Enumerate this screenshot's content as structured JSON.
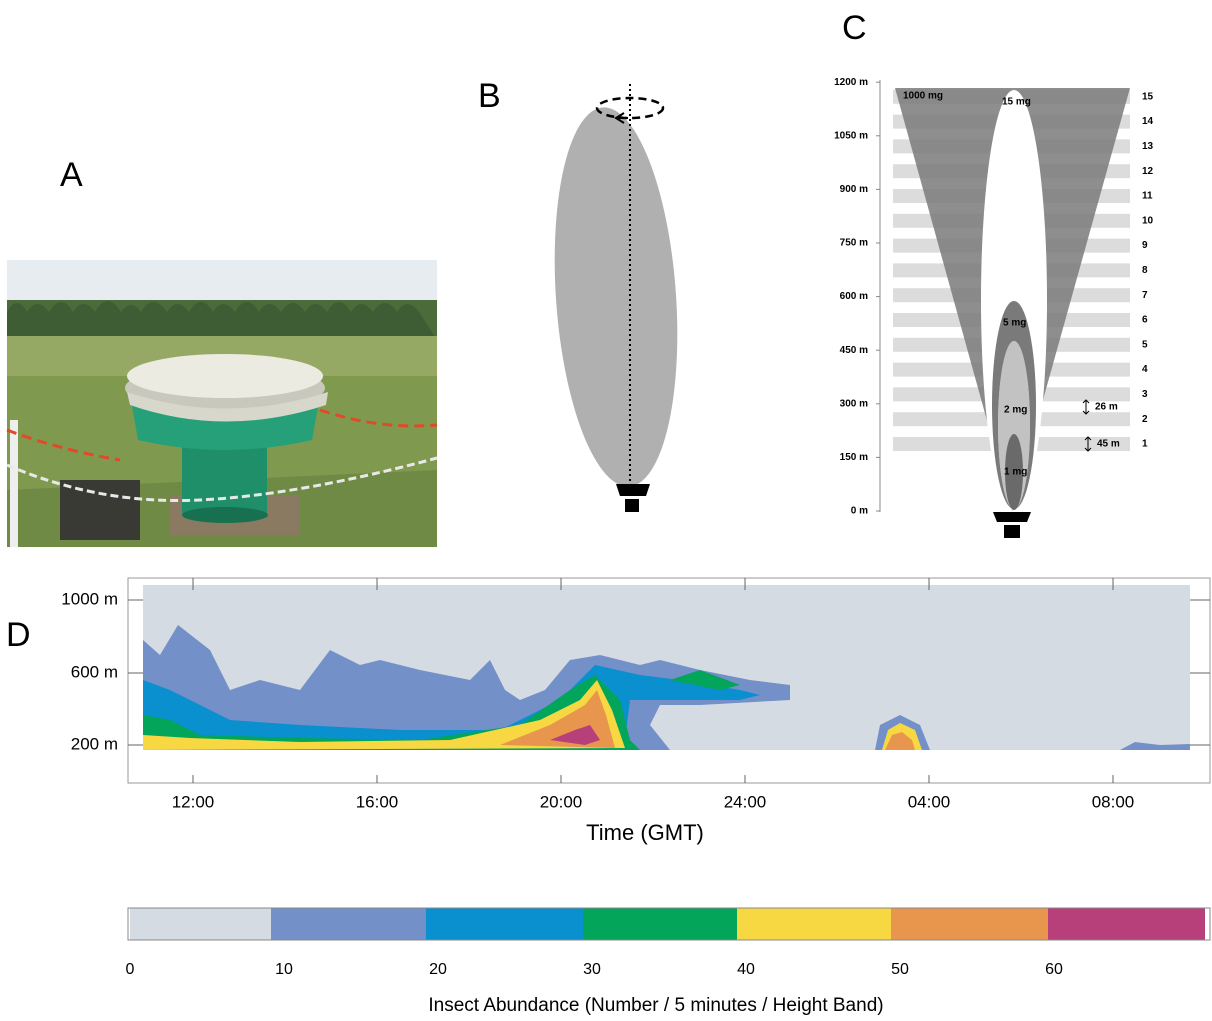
{
  "panels": {
    "a": {
      "label": "A"
    },
    "b": {
      "label": "B"
    },
    "c": {
      "label": "C",
      "height_labels": [
        "0 m",
        "150 m",
        "300 m",
        "450 m",
        "600 m",
        "750 m",
        "900 m",
        "1050 m",
        "1200 m"
      ],
      "band_labels": [
        "1",
        "2",
        "3",
        "4",
        "5",
        "6",
        "7",
        "8",
        "9",
        "10",
        "11",
        "12",
        "13",
        "14",
        "15"
      ],
      "mass_labels": [
        "1000 mg",
        "15 mg",
        "5 mg",
        "2 mg",
        "1 mg"
      ],
      "band_widths": [
        "26 m",
        "45 m"
      ]
    },
    "d": {
      "label": "D",
      "y_labels": [
        "1000 m",
        "600 m",
        "200 m"
      ],
      "x_labels": [
        "12:00",
        "16:00",
        "20:00",
        "24:00",
        "04:00",
        "08:00"
      ],
      "x_title": "Time (GMT)"
    }
  },
  "legend": {
    "ticks": [
      "0",
      "10",
      "20",
      "30",
      "40",
      "50",
      "60"
    ],
    "title": "Insect Abundance (Number / 5 minutes / Height Band)",
    "colors": [
      "#d5dbe3",
      "#7390c8",
      "#0a8fcf",
      "#03a55a",
      "#f7d842",
      "#e8964e",
      "#b8407a"
    ]
  }
}
